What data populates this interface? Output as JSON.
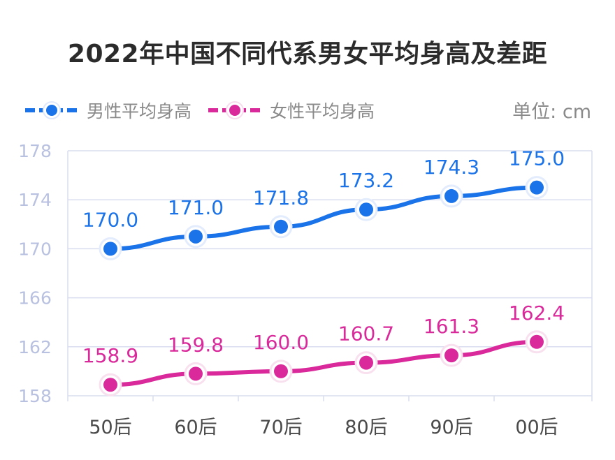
{
  "title": "2022年中国不同代系男女平均身高及差距",
  "unit_label": "单位: cm",
  "colors": {
    "male": "#1a73e8",
    "female": "#d9299a",
    "grid": "#d9ddef",
    "ytick": "#b9c1e0"
  },
  "chart_data": {
    "type": "line",
    "title": "2022年中国不同代系男女平均身高及差距",
    "categories": [
      "50后",
      "60后",
      "70后",
      "80后",
      "90后",
      "00后"
    ],
    "series": [
      {
        "name": "男性平均身高",
        "values": [
          170.0,
          171.0,
          171.8,
          173.2,
          174.3,
          175.0
        ],
        "labels": [
          "170.0",
          "171.0",
          "171.8",
          "173.2",
          "174.3",
          "175.0"
        ]
      },
      {
        "name": "女性平均身高",
        "values": [
          158.9,
          159.8,
          160.0,
          160.7,
          161.3,
          162.4
        ],
        "labels": [
          "158.9",
          "159.8",
          "160.0",
          "160.7",
          "161.3",
          "162.4"
        ]
      }
    ],
    "ylim": [
      158,
      178
    ],
    "yticks": [
      "158",
      "162",
      "166",
      "170",
      "174",
      "178"
    ],
    "grid": true,
    "legend": "top-left"
  }
}
